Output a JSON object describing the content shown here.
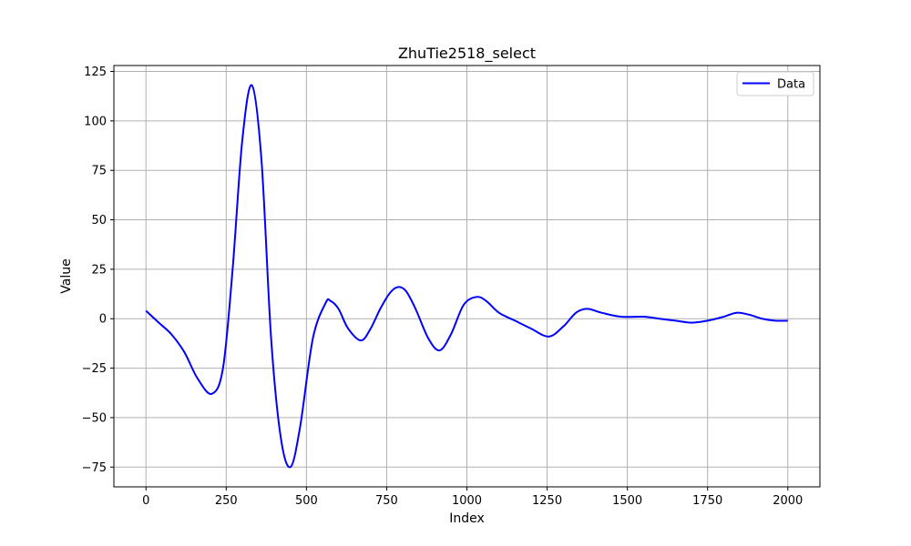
{
  "chart_data": {
    "type": "line",
    "title": "ZhuTie2518_select",
    "xlabel": "Index",
    "ylabel": "Value",
    "xlim": [
      -100,
      2100
    ],
    "ylim": [
      -85,
      128
    ],
    "xticks": [
      0,
      250,
      500,
      750,
      1000,
      1250,
      1500,
      1750,
      2000
    ],
    "xtick_labels": [
      "0",
      "250",
      "500",
      "750",
      "1000",
      "1250",
      "1500",
      "1750",
      "2000"
    ],
    "yticks": [
      -75,
      -50,
      -25,
      0,
      25,
      50,
      75,
      100,
      125
    ],
    "ytick_labels": [
      "−75",
      "−50",
      "−25",
      "0",
      "25",
      "50",
      "75",
      "100",
      "125"
    ],
    "grid": true,
    "legend": {
      "placement": "top-right",
      "entries": [
        "Data"
      ]
    },
    "colors": {
      "series": "#0000ff",
      "grid": "#b0b0b0"
    },
    "series": [
      {
        "name": "Data",
        "x": [
          0,
          40,
          80,
          120,
          160,
          205,
          240,
          270,
          300,
          330,
          360,
          390,
          420,
          450,
          480,
          520,
          560,
          575,
          600,
          630,
          670,
          700,
          730,
          760,
          785,
          810,
          840,
          880,
          915,
          950,
          990,
          1030,
          1060,
          1100,
          1150,
          1200,
          1255,
          1300,
          1340,
          1375,
          1420,
          1480,
          1550,
          1600,
          1650,
          1700,
          1750,
          1800,
          1840,
          1880,
          1920,
          1960,
          2000
        ],
        "y": [
          4,
          -2,
          -8,
          -17,
          -30,
          -38,
          -25,
          25,
          90,
          118,
          80,
          -10,
          -60,
          -75,
          -55,
          -10,
          8,
          9,
          5,
          -5,
          -11,
          -5,
          5,
          13,
          16,
          14,
          5,
          -10,
          -16,
          -8,
          7,
          11,
          9,
          3,
          -1,
          -5,
          -9,
          -4,
          3,
          5,
          3,
          1,
          1,
          0,
          -1,
          -2,
          -1,
          1,
          3,
          2,
          0,
          -1,
          -1
        ]
      }
    ]
  }
}
